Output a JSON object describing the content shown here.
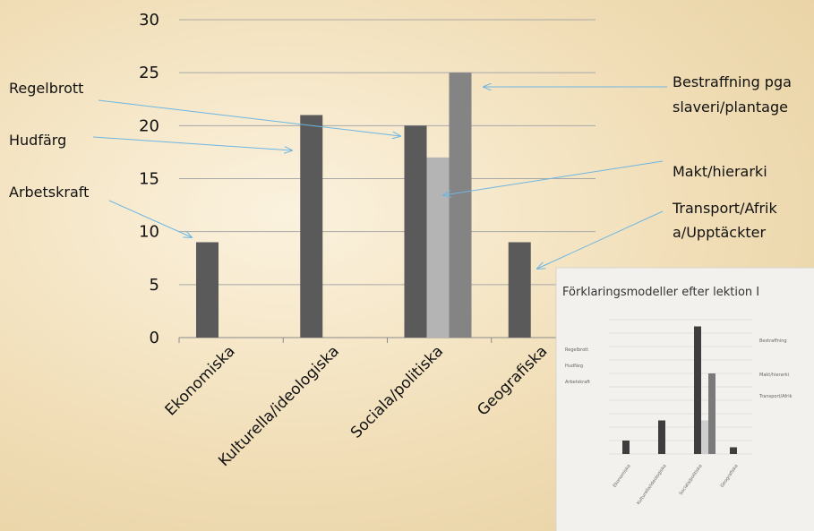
{
  "chart_data": {
    "type": "bar",
    "categories": [
      "Ekonomiska",
      "Kulturella/ideologiska",
      "Sociala/politiska",
      "Geografiska"
    ],
    "ylim": [
      0,
      30
    ],
    "yticks": [
      "0",
      "5",
      "10",
      "15",
      "20",
      "25",
      "30"
    ],
    "bars": [
      {
        "category": "Ekonomiska",
        "slot": 0,
        "value": 9,
        "color": "#5a5a5a"
      },
      {
        "category": "Kulturella/ideologiska",
        "slot": 0,
        "value": 21,
        "color": "#5a5a5a"
      },
      {
        "category": "Sociala/politiska",
        "slot": 0,
        "value": 20,
        "color": "#5a5a5a"
      },
      {
        "category": "Sociala/politiska",
        "slot": 1,
        "value": 17,
        "color": "#b4b4b4"
      },
      {
        "category": "Sociala/politiska",
        "slot": 2,
        "value": 25,
        "color": "#848484"
      },
      {
        "category": "Geografiska",
        "slot": 0,
        "value": 9,
        "color": "#5a5a5a"
      }
    ],
    "grid": true,
    "colors": {
      "dark": "#5a5a5a",
      "light": "#b4b4b4",
      "mid": "#848484",
      "arrow": "#6eb6e2"
    }
  },
  "annotations": {
    "regelbrott": "Regelbrott",
    "hudfarg": "Hudfärg",
    "arbetskraft": "Arbetskraft",
    "bestraffning_line1": "Bestraffning pga",
    "bestraffning_line2": "slaveri/plantage",
    "makt": "Makt/hierarki",
    "transport_line1": "Transport/Afrik",
    "transport_line2": "a/Upptäckter"
  },
  "inset": {
    "title": "Förklaringsmodeller  efter lektion I",
    "categories": [
      "Ekonomiska",
      "Kulturella/ideologiska",
      "Sociala/politiska",
      "Geografiska"
    ],
    "ylim": [
      0,
      20
    ],
    "bars": [
      {
        "category": "Ekonomiska",
        "slot": 0,
        "value": 2
      },
      {
        "category": "Kulturella/ideologiska",
        "slot": 0,
        "value": 5
      },
      {
        "category": "Sociala/politiska",
        "slot": 0,
        "value": 19
      },
      {
        "category": "Sociala/politiska",
        "slot": 1,
        "value": 5
      },
      {
        "category": "Sociala/politiska",
        "slot": 2,
        "value": 12
      },
      {
        "category": "Geografiska",
        "slot": 0,
        "value": 1
      }
    ],
    "labels": [
      "Regelbrott",
      "Hudfärg",
      "Arbetskraft",
      "Bestraffning",
      "Makt/hierarki",
      "Transport/Afrik"
    ]
  }
}
